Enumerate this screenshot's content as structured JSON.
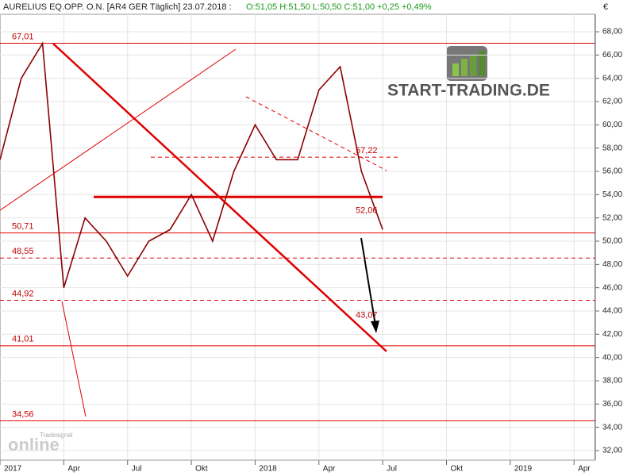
{
  "chart_data": {
    "type": "line",
    "title": "AURELIUS EQ.OPP.    O.N. [AR4 GER  Täglich] 23.07.2018 :",
    "quote": "O:51,05 H:51,50 L:50,50 C:51,00 +0,25 +0,49%",
    "currency": "€",
    "logo": "START-TRADING.DE",
    "watermark_small": "Tradesignal",
    "watermark": "online",
    "x": [
      "2017-01",
      "2017-02",
      "2017-03",
      "2017-04",
      "2017-05",
      "2017-06",
      "2017-07",
      "2017-08",
      "2017-09",
      "2017-10",
      "2017-11",
      "2017-12",
      "2018-01",
      "2018-02",
      "2018-03",
      "2018-04",
      "2018-05",
      "2018-06",
      "2018-07"
    ],
    "series": [
      {
        "name": "AURELIUS",
        "color": "#8b0000",
        "values": [
          57,
          64,
          67,
          46,
          52,
          50,
          47,
          50,
          51,
          54,
          50,
          56,
          60,
          57,
          57,
          63,
          65,
          56,
          51
        ]
      }
    ],
    "xlim": [
      "2017-01",
      "2019-05"
    ],
    "xticks": [
      {
        "value": "2017-01",
        "label": "2017"
      },
      {
        "value": "2017-04",
        "label": "Apr"
      },
      {
        "value": "2017-07",
        "label": "Jul"
      },
      {
        "value": "2017-10",
        "label": "Okt"
      },
      {
        "value": "2018-01",
        "label": "2018"
      },
      {
        "value": "2018-04",
        "label": "Apr"
      },
      {
        "value": "2018-07",
        "label": "Jul"
      },
      {
        "value": "2018-10",
        "label": "Okt"
      },
      {
        "value": "2019-01",
        "label": "2019"
      },
      {
        "value": "2019-04",
        "label": "Apr"
      }
    ],
    "ylim": [
      31.18,
      70.73
    ],
    "yticks": [
      {
        "value": 32,
        "label": "32,00"
      },
      {
        "value": 34,
        "label": "34,00"
      },
      {
        "value": 36,
        "label": "36,00"
      },
      {
        "value": 38,
        "label": "38,00"
      },
      {
        "value": 40,
        "label": "40,00"
      },
      {
        "value": 42,
        "label": "42,00"
      },
      {
        "value": 44,
        "label": "44,00"
      },
      {
        "value": 46,
        "label": "46,00"
      },
      {
        "value": 48,
        "label": "48,00"
      },
      {
        "value": 50,
        "label": "50,00"
      },
      {
        "value": 52,
        "label": "52,00"
      },
      {
        "value": 54,
        "label": "54,00"
      },
      {
        "value": 56,
        "label": "56,00"
      },
      {
        "value": 58,
        "label": "58,00"
      },
      {
        "value": 60,
        "label": "60,00"
      },
      {
        "value": 62,
        "label": "62,00"
      },
      {
        "value": 64,
        "label": "64,00"
      },
      {
        "value": 66,
        "label": "66,00"
      },
      {
        "value": 68,
        "label": "68,00"
      }
    ],
    "grid": true,
    "levels": [
      {
        "value": 67.01,
        "label": "67,01",
        "style": "solid"
      },
      {
        "value": 50.71,
        "label": "50,71",
        "style": "solid"
      },
      {
        "value": 48.55,
        "label": "48,55",
        "style": "dashed"
      },
      {
        "value": 44.92,
        "label": "44,92",
        "style": "dashed"
      },
      {
        "value": 41.01,
        "label": "41,01",
        "style": "solid"
      },
      {
        "value": 34.56,
        "label": "34,56",
        "style": "solid"
      },
      {
        "value": 57.22,
        "label": "57,22",
        "style": "dashed-partial"
      },
      {
        "value": 53.8,
        "style": "thick-partial"
      },
      {
        "value": 52.06,
        "label": "52,06",
        "style": "label"
      },
      {
        "value": 43.07,
        "label": "43,07",
        "style": "label"
      }
    ]
  }
}
